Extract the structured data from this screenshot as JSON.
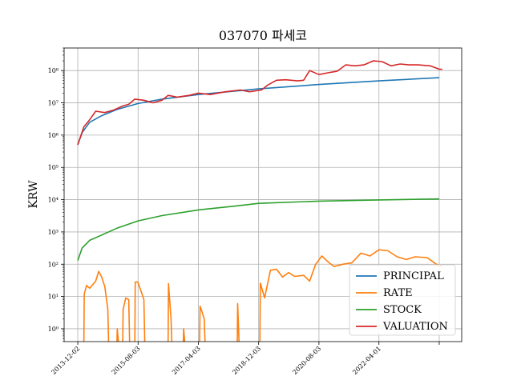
{
  "chart_data": {
    "type": "line",
    "title": "037070 파세코",
    "xlabel": "",
    "ylabel": "KRW",
    "yscale": "log",
    "ylim": [
      0.4,
      500000000
    ],
    "xlim": [
      "2013-07-17",
      "2024-07-15"
    ],
    "grid": true,
    "legend_position": "bottom-right",
    "xtick_labels": [
      "2013-12-02",
      "2015-08-03",
      "2017-04-03",
      "2018-12-03",
      "2020-08-03",
      "2022-04-01",
      ""
    ],
    "xtick_dates": [
      "2013-12-02",
      "2015-08-03",
      "2017-04-03",
      "2018-12-03",
      "2020-08-03",
      "2022-04-01",
      "2023-12-01"
    ],
    "ytick_labels": [
      "10⁰",
      "10¹",
      "10²",
      "10³",
      "10⁴",
      "10⁵",
      "10⁶",
      "10⁷",
      "10⁸"
    ],
    "ytick_values": [
      1,
      10,
      100,
      1000,
      10000,
      100000,
      1000000,
      10000000,
      100000000
    ],
    "series": [
      {
        "name": "PRINCIPAL",
        "color": "#1f77b4",
        "points": [
          [
            "2013-12-02",
            500000
          ],
          [
            "2014-01-15",
            1200000
          ],
          [
            "2014-04-01",
            2500000
          ],
          [
            "2014-08-01",
            4000000
          ],
          [
            "2015-01-01",
            6200000
          ],
          [
            "2015-08-03",
            9500000
          ],
          [
            "2016-04-01",
            13000000
          ],
          [
            "2017-04-03",
            18000000
          ],
          [
            "2018-04-01",
            23000000
          ],
          [
            "2018-12-03",
            27000000
          ],
          [
            "2020-08-03",
            37000000
          ],
          [
            "2022-04-01",
            48000000
          ],
          [
            "2023-12-01",
            60000000
          ]
        ]
      },
      {
        "name": "RATE",
        "color": "#ff7f0e",
        "points": [
          [
            "2014-02-01",
            0.3
          ],
          [
            "2014-02-05",
            12
          ],
          [
            "2014-03-01",
            22
          ],
          [
            "2014-04-01",
            18
          ],
          [
            "2014-06-01",
            30
          ],
          [
            "2014-07-01",
            60
          ],
          [
            "2014-08-01",
            40
          ],
          [
            "2014-09-01",
            20
          ],
          [
            "2014-10-01",
            4
          ],
          [
            "2014-10-10",
            0.3
          ],
          [
            "2015-01-01",
            0.3
          ],
          [
            "2015-01-05",
            1
          ],
          [
            "2015-01-20",
            0.3
          ],
          [
            "2015-03-01",
            0.3
          ],
          [
            "2015-03-05",
            4
          ],
          [
            "2015-04-01",
            9
          ],
          [
            "2015-05-01",
            8
          ],
          [
            "2015-05-10",
            0.3
          ],
          [
            "2015-07-01",
            0.3
          ],
          [
            "2015-07-05",
            28
          ],
          [
            "2015-08-01",
            28
          ],
          [
            "2015-09-01",
            15
          ],
          [
            "2015-10-01",
            8
          ],
          [
            "2015-10-10",
            0.3
          ],
          [
            "2016-06-01",
            0.3
          ],
          [
            "2016-06-05",
            25
          ],
          [
            "2016-07-01",
            2
          ],
          [
            "2016-07-10",
            0.3
          ],
          [
            "2016-11-01",
            0.3
          ],
          [
            "2016-11-05",
            1
          ],
          [
            "2016-11-20",
            0.3
          ],
          [
            "2017-04-15",
            0.3
          ],
          [
            "2017-04-20",
            5
          ],
          [
            "2017-05-15",
            3
          ],
          [
            "2017-06-01",
            2
          ],
          [
            "2017-06-10",
            0.3
          ],
          [
            "2018-05-01",
            0.3
          ],
          [
            "2018-05-05",
            6
          ],
          [
            "2018-05-20",
            0.3
          ],
          [
            "2018-12-15",
            0.3
          ],
          [
            "2018-12-20",
            26
          ],
          [
            "2019-02-01",
            9
          ],
          [
            "2019-04-01",
            65
          ],
          [
            "2019-06-01",
            70
          ],
          [
            "2019-08-01",
            40
          ],
          [
            "2019-10-01",
            55
          ],
          [
            "2019-12-01",
            42
          ],
          [
            "2020-03-01",
            45
          ],
          [
            "2020-05-01",
            30
          ],
          [
            "2020-07-01",
            100
          ],
          [
            "2020-09-01",
            180
          ],
          [
            "2020-11-01",
            120
          ],
          [
            "2021-01-01",
            85
          ],
          [
            "2021-04-01",
            100
          ],
          [
            "2021-07-01",
            110
          ],
          [
            "2021-10-01",
            220
          ],
          [
            "2022-01-01",
            180
          ],
          [
            "2022-04-01",
            280
          ],
          [
            "2022-07-01",
            260
          ],
          [
            "2022-10-01",
            170
          ],
          [
            "2023-01-01",
            140
          ],
          [
            "2023-04-01",
            170
          ],
          [
            "2023-08-01",
            160
          ],
          [
            "2023-11-01",
            100
          ],
          [
            "2024-01-01",
            85
          ]
        ]
      },
      {
        "name": "STOCK",
        "color": "#2ca02c",
        "points": [
          [
            "2013-12-02",
            130
          ],
          [
            "2014-01-15",
            320
          ],
          [
            "2014-04-01",
            550
          ],
          [
            "2014-08-01",
            800
          ],
          [
            "2015-01-01",
            1300
          ],
          [
            "2015-08-03",
            2200
          ],
          [
            "2016-04-01",
            3200
          ],
          [
            "2017-04-03",
            4800
          ],
          [
            "2018-04-01",
            6300
          ],
          [
            "2018-12-03",
            7700
          ],
          [
            "2020-08-03",
            9000
          ],
          [
            "2022-04-01",
            9800
          ],
          [
            "2023-12-01",
            10500
          ]
        ]
      },
      {
        "name": "VALUATION",
        "color": "#d62728",
        "points": [
          [
            "2013-12-02",
            500000
          ],
          [
            "2014-02-01",
            1800000
          ],
          [
            "2014-04-01",
            3000000
          ],
          [
            "2014-06-01",
            5500000
          ],
          [
            "2014-09-01",
            5000000
          ],
          [
            "2014-12-01",
            6000000
          ],
          [
            "2015-03-01",
            8000000
          ],
          [
            "2015-05-01",
            9000000
          ],
          [
            "2015-07-01",
            13000000
          ],
          [
            "2015-10-01",
            12000000
          ],
          [
            "2016-01-01",
            10000000
          ],
          [
            "2016-04-01",
            12000000
          ],
          [
            "2016-06-01",
            17000000
          ],
          [
            "2016-09-01",
            15000000
          ],
          [
            "2017-01-01",
            17000000
          ],
          [
            "2017-04-03",
            20000000
          ],
          [
            "2017-08-01",
            18000000
          ],
          [
            "2018-01-01",
            22000000
          ],
          [
            "2018-06-01",
            25000000
          ],
          [
            "2018-09-01",
            22000000
          ],
          [
            "2019-01-01",
            25000000
          ],
          [
            "2019-03-01",
            35000000
          ],
          [
            "2019-06-01",
            50000000
          ],
          [
            "2019-09-01",
            52000000
          ],
          [
            "2020-01-01",
            48000000
          ],
          [
            "2020-03-01",
            50000000
          ],
          [
            "2020-05-01",
            100000000
          ],
          [
            "2020-08-03",
            75000000
          ],
          [
            "2020-11-01",
            85000000
          ],
          [
            "2021-02-01",
            95000000
          ],
          [
            "2021-05-01",
            150000000
          ],
          [
            "2021-08-01",
            140000000
          ],
          [
            "2021-11-01",
            150000000
          ],
          [
            "2022-02-01",
            200000000
          ],
          [
            "2022-05-01",
            190000000
          ],
          [
            "2022-08-01",
            140000000
          ],
          [
            "2022-11-01",
            160000000
          ],
          [
            "2023-02-01",
            150000000
          ],
          [
            "2023-05-01",
            150000000
          ],
          [
            "2023-09-01",
            140000000
          ],
          [
            "2023-12-01",
            110000000
          ],
          [
            "2024-01-01",
            110000000
          ]
        ]
      }
    ]
  }
}
